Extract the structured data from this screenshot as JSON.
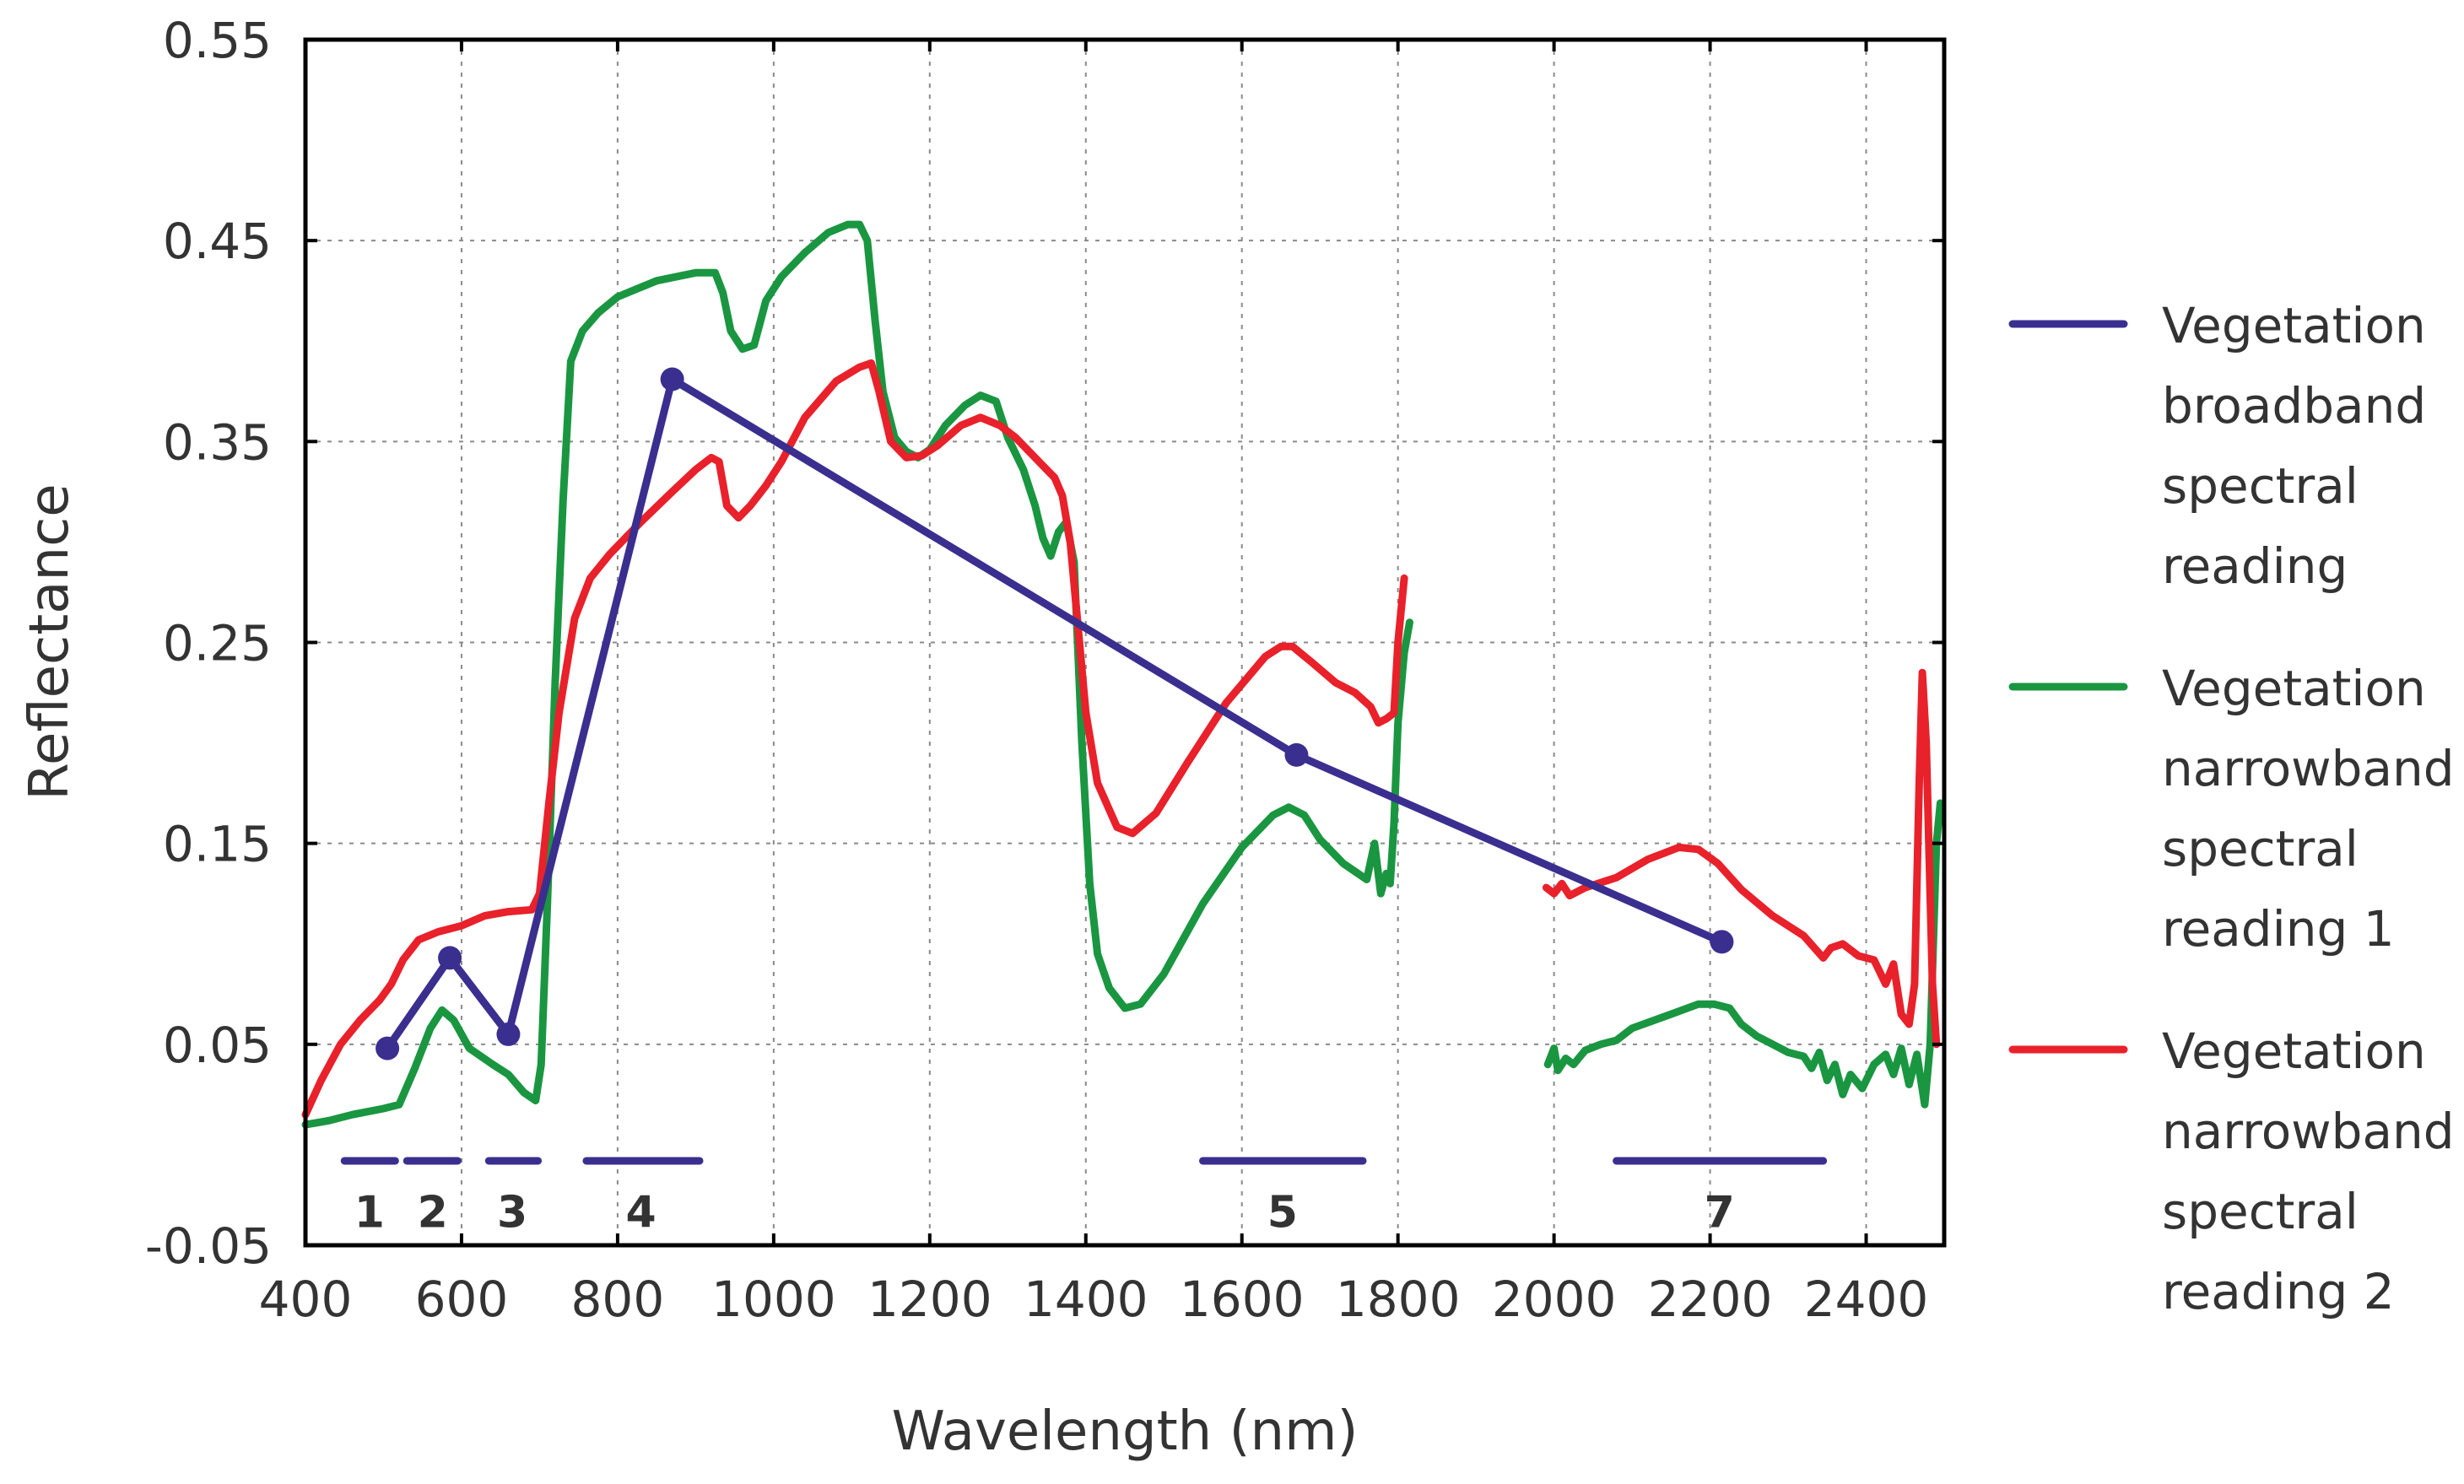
{
  "chart_data": {
    "type": "line",
    "title": "",
    "xlabel": "Wavelength (nm)",
    "ylabel": "Reflectance",
    "xlim": [
      400,
      2500
    ],
    "ylim": [
      -0.05,
      0.55
    ],
    "x_ticks": [
      400,
      600,
      800,
      1000,
      1200,
      1400,
      1600,
      1800,
      2000,
      2200,
      2400
    ],
    "x_tick_labels": [
      "400",
      "600",
      "800",
      "1000",
      "1200",
      "1400",
      "1600",
      "1800",
      "2000",
      "2200",
      "2400"
    ],
    "y_ticks": [
      -0.05,
      0.05,
      0.15,
      0.25,
      0.35,
      0.45,
      0.55
    ],
    "y_tick_labels": [
      "-0.05",
      "0.05",
      "0.15",
      "0.25",
      "0.35",
      "0.45",
      "0.55"
    ],
    "grid": true,
    "legend_position": "right",
    "series": [
      {
        "name": "Vegetation broadband spectral reading",
        "legend_lines": [
          "Vegetation",
          "broadband",
          "spectral",
          "reading"
        ],
        "color": "#3a2f8f",
        "markers": true,
        "segments": [
          [
            [
              505,
              0.048
            ],
            [
              585,
              0.093
            ],
            [
              660,
              0.055
            ],
            [
              870,
              0.381
            ],
            [
              1670,
              0.194
            ],
            [
              2215,
              0.101
            ]
          ]
        ]
      },
      {
        "name": "Vegetation narrowband spectral reading 1",
        "legend_lines": [
          "Vegetation",
          "narrowband",
          "spectral",
          "reading 1"
        ],
        "color": "#1a9641",
        "markers": false,
        "segments": [
          [
            [
              400,
              0.01
            ],
            [
              430,
              0.012
            ],
            [
              460,
              0.015
            ],
            [
              500,
              0.018
            ],
            [
              520,
              0.02
            ],
            [
              540,
              0.038
            ],
            [
              560,
              0.058
            ],
            [
              575,
              0.067
            ],
            [
              590,
              0.062
            ],
            [
              610,
              0.048
            ],
            [
              640,
              0.04
            ],
            [
              660,
              0.035
            ],
            [
              680,
              0.026
            ],
            [
              695,
              0.022
            ],
            [
              702,
              0.04
            ],
            [
              710,
              0.12
            ],
            [
              720,
              0.23
            ],
            [
              730,
              0.32
            ],
            [
              740,
              0.39
            ],
            [
              755,
              0.405
            ],
            [
              775,
              0.414
            ],
            [
              800,
              0.422
            ],
            [
              850,
              0.43
            ],
            [
              900,
              0.434
            ],
            [
              925,
              0.434
            ],
            [
              935,
              0.424
            ],
            [
              945,
              0.405
            ],
            [
              960,
              0.396
            ],
            [
              975,
              0.398
            ],
            [
              990,
              0.42
            ],
            [
              1010,
              0.432
            ],
            [
              1040,
              0.444
            ],
            [
              1070,
              0.454
            ],
            [
              1095,
              0.458
            ],
            [
              1110,
              0.458
            ],
            [
              1120,
              0.45
            ],
            [
              1130,
              0.41
            ],
            [
              1140,
              0.375
            ],
            [
              1155,
              0.352
            ],
            [
              1170,
              0.345
            ],
            [
              1185,
              0.342
            ],
            [
              1200,
              0.346
            ],
            [
              1220,
              0.358
            ],
            [
              1245,
              0.368
            ],
            [
              1265,
              0.373
            ],
            [
              1285,
              0.37
            ],
            [
              1300,
              0.352
            ],
            [
              1320,
              0.336
            ],
            [
              1335,
              0.318
            ],
            [
              1345,
              0.302
            ],
            [
              1355,
              0.293
            ],
            [
              1365,
              0.305
            ],
            [
              1375,
              0.31
            ],
            [
              1385,
              0.29
            ],
            [
              1395,
              0.2
            ],
            [
              1405,
              0.13
            ],
            [
              1415,
              0.095
            ],
            [
              1430,
              0.078
            ],
            [
              1450,
              0.068
            ],
            [
              1470,
              0.07
            ],
            [
              1500,
              0.085
            ],
            [
              1550,
              0.12
            ],
            [
              1600,
              0.148
            ],
            [
              1640,
              0.164
            ],
            [
              1660,
              0.168
            ],
            [
              1680,
              0.164
            ],
            [
              1700,
              0.152
            ],
            [
              1730,
              0.14
            ],
            [
              1760,
              0.132
            ],
            [
              1770,
              0.15
            ],
            [
              1778,
              0.125
            ],
            [
              1785,
              0.135
            ],
            [
              1790,
              0.13
            ],
            [
              1795,
              0.16
            ],
            [
              1800,
              0.21
            ],
            [
              1808,
              0.245
            ],
            [
              1815,
              0.26
            ]
          ],
          [
            [
              1992,
              0.04
            ],
            [
              2000,
              0.048
            ],
            [
              2005,
              0.037
            ],
            [
              2015,
              0.043
            ],
            [
              2025,
              0.04
            ],
            [
              2040,
              0.047
            ],
            [
              2060,
              0.05
            ],
            [
              2080,
              0.052
            ],
            [
              2100,
              0.058
            ],
            [
              2150,
              0.065
            ],
            [
              2185,
              0.07
            ],
            [
              2205,
              0.07
            ],
            [
              2225,
              0.068
            ],
            [
              2240,
              0.06
            ],
            [
              2260,
              0.054
            ],
            [
              2280,
              0.05
            ],
            [
              2300,
              0.046
            ],
            [
              2320,
              0.044
            ],
            [
              2330,
              0.038
            ],
            [
              2340,
              0.046
            ],
            [
              2350,
              0.032
            ],
            [
              2360,
              0.04
            ],
            [
              2370,
              0.025
            ],
            [
              2380,
              0.035
            ],
            [
              2395,
              0.028
            ],
            [
              2410,
              0.04
            ],
            [
              2425,
              0.045
            ],
            [
              2435,
              0.035
            ],
            [
              2445,
              0.048
            ],
            [
              2455,
              0.03
            ],
            [
              2465,
              0.045
            ],
            [
              2475,
              0.02
            ],
            [
              2482,
              0.05
            ],
            [
              2490,
              0.15
            ],
            [
              2495,
              0.17
            ]
          ]
        ]
      },
      {
        "name": "Vegetation narrowband spectral reading 2",
        "legend_lines": [
          "Vegetation",
          "narrowband",
          "spectral",
          "reading 2"
        ],
        "color": "#e8212b",
        "markers": false,
        "segments": [
          [
            [
              400,
              0.015
            ],
            [
              420,
              0.032
            ],
            [
              445,
              0.05
            ],
            [
              470,
              0.062
            ],
            [
              495,
              0.072
            ],
            [
              510,
              0.08
            ],
            [
              525,
              0.092
            ],
            [
              545,
              0.102
            ],
            [
              570,
              0.106
            ],
            [
              600,
              0.109
            ],
            [
              630,
              0.114
            ],
            [
              660,
              0.116
            ],
            [
              690,
              0.117
            ],
            [
              700,
              0.125
            ],
            [
              712,
              0.17
            ],
            [
              725,
              0.215
            ],
            [
              745,
              0.262
            ],
            [
              765,
              0.282
            ],
            [
              790,
              0.294
            ],
            [
              830,
              0.31
            ],
            [
              870,
              0.325
            ],
            [
              900,
              0.336
            ],
            [
              920,
              0.342
            ],
            [
              930,
              0.34
            ],
            [
              940,
              0.318
            ],
            [
              955,
              0.312
            ],
            [
              970,
              0.318
            ],
            [
              990,
              0.328
            ],
            [
              1010,
              0.34
            ],
            [
              1040,
              0.362
            ],
            [
              1080,
              0.38
            ],
            [
              1110,
              0.387
            ],
            [
              1125,
              0.389
            ],
            [
              1135,
              0.375
            ],
            [
              1150,
              0.35
            ],
            [
              1170,
              0.342
            ],
            [
              1190,
              0.343
            ],
            [
              1210,
              0.348
            ],
            [
              1240,
              0.358
            ],
            [
              1265,
              0.362
            ],
            [
              1290,
              0.358
            ],
            [
              1310,
              0.352
            ],
            [
              1330,
              0.344
            ],
            [
              1350,
              0.336
            ],
            [
              1360,
              0.332
            ],
            [
              1370,
              0.323
            ],
            [
              1380,
              0.3
            ],
            [
              1390,
              0.258
            ],
            [
              1400,
              0.215
            ],
            [
              1415,
              0.18
            ],
            [
              1440,
              0.158
            ],
            [
              1460,
              0.155
            ],
            [
              1490,
              0.165
            ],
            [
              1530,
              0.19
            ],
            [
              1580,
              0.22
            ],
            [
              1630,
              0.243
            ],
            [
              1650,
              0.248
            ],
            [
              1665,
              0.248
            ],
            [
              1690,
              0.24
            ],
            [
              1720,
              0.23
            ],
            [
              1745,
              0.225
            ],
            [
              1765,
              0.218
            ],
            [
              1775,
              0.21
            ],
            [
              1785,
              0.212
            ],
            [
              1795,
              0.215
            ],
            [
              1800,
              0.25
            ],
            [
              1808,
              0.282
            ]
          ],
          [
            [
              1990,
              0.128
            ],
            [
              2000,
              0.125
            ],
            [
              2010,
              0.13
            ],
            [
              2020,
              0.124
            ],
            [
              2040,
              0.128
            ],
            [
              2080,
              0.133
            ],
            [
              2120,
              0.142
            ],
            [
              2160,
              0.148
            ],
            [
              2185,
              0.147
            ],
            [
              2210,
              0.14
            ],
            [
              2240,
              0.127
            ],
            [
              2280,
              0.114
            ],
            [
              2320,
              0.104
            ],
            [
              2345,
              0.093
            ],
            [
              2355,
              0.098
            ],
            [
              2370,
              0.1
            ],
            [
              2390,
              0.094
            ],
            [
              2410,
              0.092
            ],
            [
              2425,
              0.08
            ],
            [
              2435,
              0.09
            ],
            [
              2445,
              0.065
            ],
            [
              2455,
              0.06
            ],
            [
              2462,
              0.08
            ],
            [
              2468,
              0.18
            ],
            [
              2472,
              0.235
            ],
            [
              2477,
              0.2
            ],
            [
              2485,
              0.08
            ],
            [
              2490,
              0.05
            ]
          ]
        ]
      }
    ],
    "band_markers": [
      {
        "label": "1",
        "start": 450,
        "end": 515,
        "label_x": 482
      },
      {
        "label": "2",
        "start": 530,
        "end": 595,
        "label_x": 563
      },
      {
        "label": "3",
        "start": 635,
        "end": 698,
        "label_x": 665
      },
      {
        "label": "4",
        "start": 760,
        "end": 905,
        "label_x": 830
      },
      {
        "label": "5",
        "start": 1550,
        "end": 1755,
        "label_x": 1652
      },
      {
        "label": "7",
        "start": 2080,
        "end": 2345,
        "label_x": 2212
      }
    ],
    "band_marker_y": -0.008,
    "band_label_y": -0.033,
    "band_color": "#3a2f8f"
  }
}
